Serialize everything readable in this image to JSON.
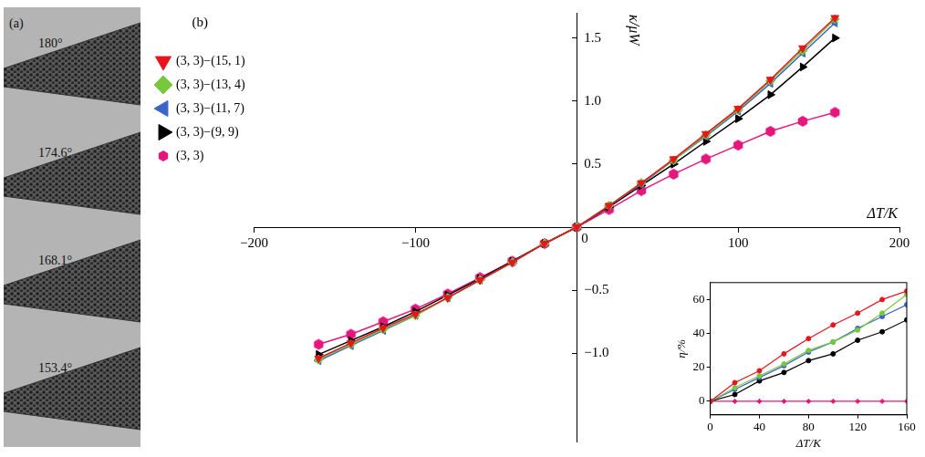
{
  "panel_a": {
    "label": "(a)",
    "angles": [
      "180°",
      "174.6°",
      "168.1°",
      "153.4°"
    ]
  },
  "chart_data": [
    {
      "type": "line",
      "panel_label": "(b)",
      "x_label": "ΔT/K",
      "y_label": "κ/μW",
      "x": [
        -160,
        -140,
        -120,
        -100,
        -80,
        -60,
        -40,
        -20,
        0,
        20,
        40,
        60,
        80,
        100,
        120,
        140,
        160
      ],
      "series": [
        {
          "name": "(3, 3)−(15, 1)",
          "color": "#e8141e",
          "marker": "triangle-down",
          "values": [
            -1.04,
            -0.92,
            -0.8,
            -0.69,
            -0.56,
            -0.42,
            -0.28,
            -0.13,
            0,
            0.17,
            0.35,
            0.54,
            0.74,
            0.94,
            1.17,
            1.42,
            1.66
          ]
        },
        {
          "name": "(3, 3)−(13, 4)",
          "color": "#77c83c",
          "marker": "diamond",
          "values": [
            -1.05,
            -0.93,
            -0.81,
            -0.7,
            -0.56,
            -0.42,
            -0.28,
            -0.13,
            0,
            0.17,
            0.35,
            0.53,
            0.73,
            0.93,
            1.16,
            1.4,
            1.65
          ]
        },
        {
          "name": "(3, 3)−(11, 7)",
          "color": "#3a64c8",
          "marker": "triangle-left",
          "values": [
            -1.06,
            -0.94,
            -0.82,
            -0.7,
            -0.56,
            -0.42,
            -0.28,
            -0.13,
            0,
            0.17,
            0.34,
            0.53,
            0.72,
            0.92,
            1.14,
            1.38,
            1.62
          ]
        },
        {
          "name": "(3, 3)−(9, 9)",
          "color": "#000000",
          "marker": "triangle-right",
          "values": [
            -1.01,
            -0.9,
            -0.79,
            -0.67,
            -0.54,
            -0.41,
            -0.27,
            -0.13,
            0,
            0.16,
            0.33,
            0.5,
            0.68,
            0.86,
            1.05,
            1.27,
            1.5
          ]
        },
        {
          "name": "(3, 3)",
          "color": "#e6177c",
          "marker": "hexagon",
          "values": [
            -0.93,
            -0.85,
            -0.75,
            -0.65,
            -0.53,
            -0.4,
            -0.27,
            -0.13,
            0,
            0.14,
            0.29,
            0.42,
            0.54,
            0.65,
            0.76,
            0.84,
            0.91
          ]
        }
      ],
      "xlim": [
        -200,
        200
      ],
      "xticks": [
        {
          "value": -200,
          "label": "−200"
        },
        {
          "value": -100,
          "label": "−100"
        },
        0,
        100,
        200
      ],
      "ylim": [
        -1.7,
        1.7
      ],
      "yticks": [
        {
          "value": -1,
          "label": "−1.0"
        },
        {
          "value": -0.5,
          "label": "−0.5"
        },
        0.5,
        {
          "value": 1,
          "label": "1.0"
        },
        1.5
      ],
      "grid": false,
      "legend": "upper left"
    },
    {
      "type": "line",
      "x_label": "ΔT/K",
      "y_label": "η/%",
      "x": [
        0,
        20,
        40,
        60,
        80,
        100,
        120,
        140,
        160
      ],
      "series": [
        {
          "color": "#e8141e",
          "marker": "circle",
          "values": [
            0,
            11,
            18,
            28,
            37,
            45,
            52,
            60,
            65
          ]
        },
        {
          "color": "#77c83c",
          "marker": "circle",
          "values": [
            0,
            8,
            15,
            22,
            30,
            35,
            42,
            52,
            63
          ]
        },
        {
          "color": "#3a64c8",
          "marker": "circle",
          "values": [
            0,
            7,
            14,
            21,
            29,
            35,
            43,
            50,
            57
          ]
        },
        {
          "color": "#000000",
          "marker": "circle",
          "values": [
            0,
            4,
            12,
            17,
            24,
            28,
            36,
            41,
            48
          ]
        },
        {
          "color": "#e6177c",
          "marker": "diamond",
          "values": [
            0,
            0,
            0,
            0,
            0,
            0,
            0,
            0,
            0
          ]
        }
      ],
      "xlim": [
        0,
        160
      ],
      "xticks": [
        0,
        40,
        80,
        120,
        160
      ],
      "ylim": [
        -8,
        70
      ],
      "yticks": [
        0,
        20,
        40,
        60
      ],
      "grid": false
    }
  ]
}
